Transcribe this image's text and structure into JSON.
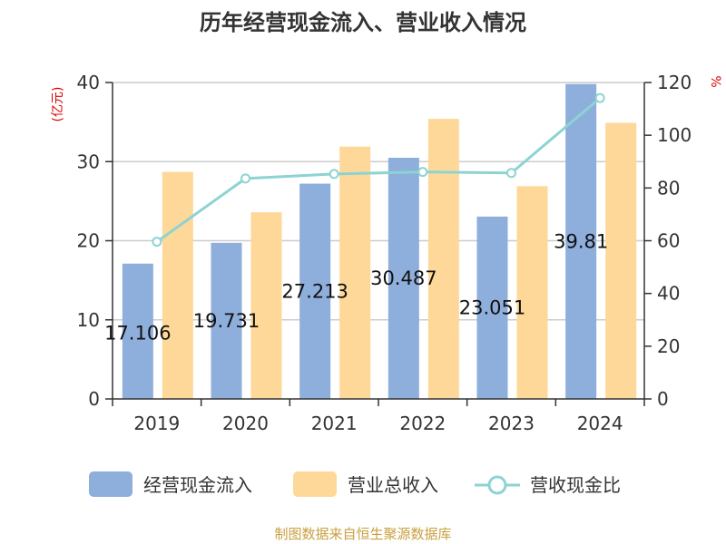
{
  "chart_data": {
    "type": "bar",
    "title": "历年经营现金流入、营业收入情况",
    "categories": [
      "2019",
      "2020",
      "2021",
      "2022",
      "2023",
      "2024"
    ],
    "series": [
      {
        "name": "经营现金流入",
        "type": "bar",
        "axis": "left",
        "color": "#8eaedb",
        "values": [
          17.106,
          19.731,
          27.213,
          30.487,
          23.051,
          39.81
        ],
        "labels": [
          "17.106",
          "19.731",
          "27.213",
          "30.487",
          "23.051",
          "39.81"
        ]
      },
      {
        "name": "营业总收入",
        "type": "bar",
        "axis": "left",
        "color": "#fed898",
        "values": [
          28.7,
          23.6,
          31.9,
          35.4,
          26.9,
          34.9
        ]
      },
      {
        "name": "营收现金比",
        "type": "line",
        "axis": "right",
        "color": "#8dd3d3",
        "values": [
          59.6,
          83.6,
          85.3,
          86.1,
          85.7,
          114.1
        ]
      }
    ],
    "y_left": {
      "label": "(亿元)",
      "min": 0,
      "max": 40,
      "ticks": [
        0,
        10,
        20,
        30,
        40
      ]
    },
    "y_right": {
      "label": "%",
      "min": 0,
      "max": 120,
      "ticks": [
        0,
        20,
        40,
        60,
        80,
        100,
        120
      ]
    },
    "grid": true,
    "legend": "bottom",
    "source_note": "制图数据来自恒生聚源数据库",
    "colors": {
      "title": "#333333",
      "axis_label": "#e00000",
      "source": "#c9a040",
      "axis": "#333333",
      "grid": "#cccccc"
    }
  }
}
